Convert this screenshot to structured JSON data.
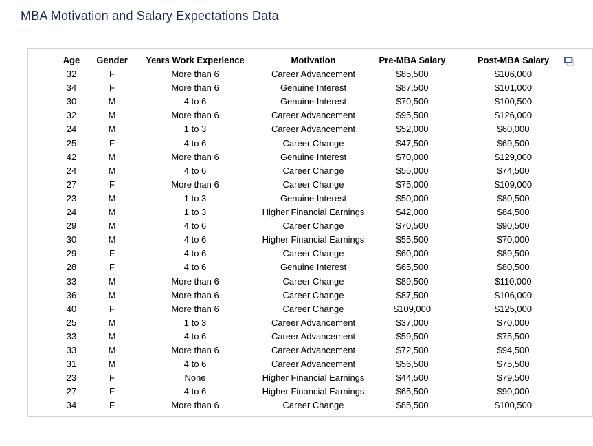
{
  "page_title": "MBA Motivation and Salary Expectations Data",
  "chart_data": {
    "type": "table",
    "title": "MBA Motivation and Salary Expectations Data",
    "columns": [
      "Age",
      "Gender",
      "Years Work Experience",
      "Motivation",
      "Pre-MBA Salary",
      "Post-MBA Salary"
    ],
    "rows": [
      [
        "32",
        "F",
        "More than 6",
        "Career Advancement",
        "$85,500",
        "$106,000"
      ],
      [
        "34",
        "F",
        "More than 6",
        "Genuine Interest",
        "$87,500",
        "$101,000"
      ],
      [
        "30",
        "M",
        "4 to 6",
        "Genuine Interest",
        "$70,500",
        "$100,500"
      ],
      [
        "32",
        "M",
        "More than 6",
        "Career Advancement",
        "$95,500",
        "$126,000"
      ],
      [
        "24",
        "M",
        "1 to 3",
        "Career Advancement",
        "$52,000",
        "$60,000"
      ],
      [
        "25",
        "F",
        "4 to 6",
        "Career Change",
        "$47,500",
        "$69,500"
      ],
      [
        "42",
        "M",
        "More than 6",
        "Genuine Interest",
        "$70,000",
        "$129,000"
      ],
      [
        "24",
        "M",
        "4 to 6",
        "Career Change",
        "$55,000",
        "$74,500"
      ],
      [
        "27",
        "F",
        "More than 6",
        "Career Change",
        "$75,000",
        "$109,000"
      ],
      [
        "23",
        "M",
        "1 to 3",
        "Genuine Interest",
        "$50,000",
        "$80,500"
      ],
      [
        "24",
        "M",
        "1 to 3",
        "Higher Financial Earnings",
        "$42,000",
        "$84,500"
      ],
      [
        "29",
        "M",
        "4 to 6",
        "Career Change",
        "$70,500",
        "$90,500"
      ],
      [
        "30",
        "M",
        "4 to 6",
        "Higher Financial Earnings",
        "$55,500",
        "$70,000"
      ],
      [
        "29",
        "F",
        "4 to 6",
        "Career Change",
        "$60,000",
        "$89,500"
      ],
      [
        "28",
        "F",
        "4 to 6",
        "Genuine Interest",
        "$65,500",
        "$80,500"
      ],
      [
        "33",
        "M",
        "More than 6",
        "Career Change",
        "$89,500",
        "$110,000"
      ],
      [
        "36",
        "M",
        "More than 6",
        "Career Change",
        "$87,500",
        "$106,000"
      ],
      [
        "40",
        "F",
        "More than 6",
        "Career Change",
        "$109,000",
        "$125,000"
      ],
      [
        "25",
        "M",
        "1 to 3",
        "Career Advancement",
        "$37,000",
        "$70,000"
      ],
      [
        "33",
        "M",
        "4 to 6",
        "Career Advancement",
        "$59,500",
        "$75,500"
      ],
      [
        "33",
        "M",
        "More than 6",
        "Career Advancement",
        "$72,500",
        "$94,500"
      ],
      [
        "31",
        "M",
        "4 to 6",
        "Career Advancement",
        "$56,500",
        "$75,500"
      ],
      [
        "23",
        "F",
        "None",
        "Higher Financial Earnings",
        "$44,500",
        "$79,500"
      ],
      [
        "27",
        "F",
        "4 to 6",
        "Higher Financial Earnings",
        "$65,500",
        "$90,000"
      ],
      [
        "34",
        "F",
        "More than 6",
        "Career Change",
        "$85,500",
        "$100,500"
      ]
    ],
    "layout": {
      "grid": "outer-border-only",
      "header_bold": true,
      "cell_align": "center",
      "row_striping": false
    }
  },
  "toolbar": {
    "popout_icon": "popout-window-icon"
  },
  "colors": {
    "title_text": "#1f2b45",
    "body_text": "#000000",
    "table_border": "#d4d4d4",
    "icon_front_stroke": "#44549c",
    "icon_back_stroke": "#b3bad8",
    "icon_fill": "#ffffff",
    "background": "#ffffff"
  }
}
